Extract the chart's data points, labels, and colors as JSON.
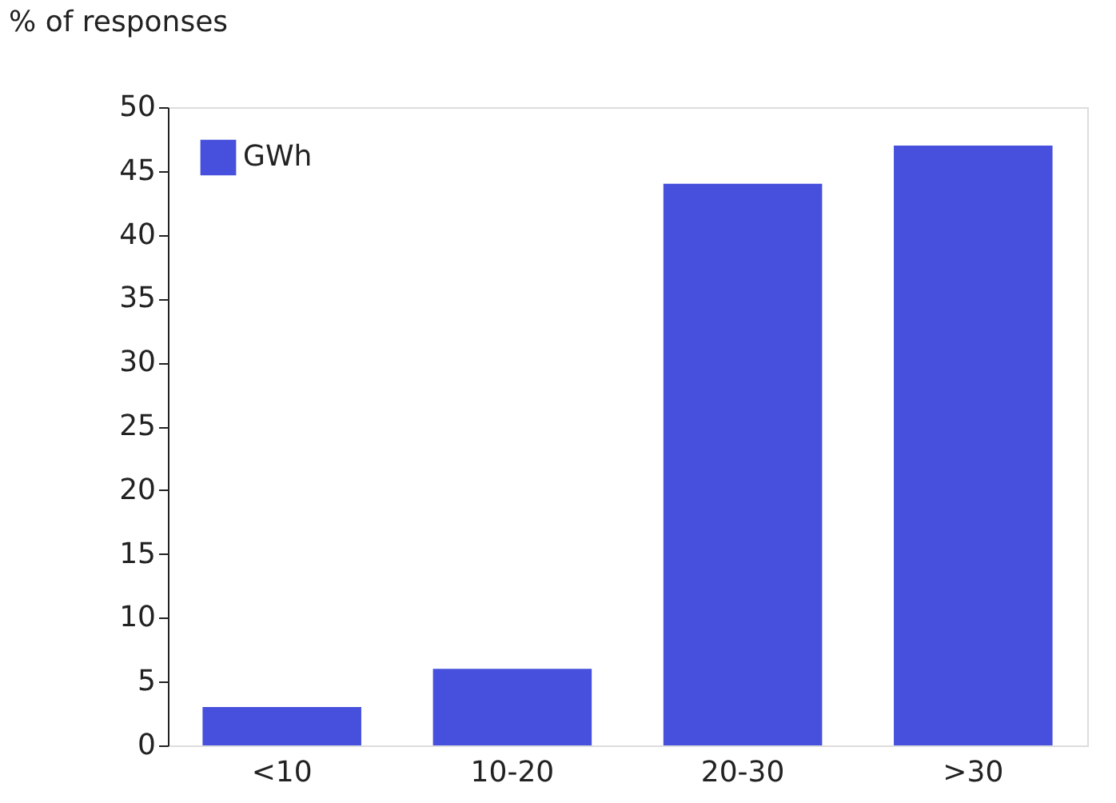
{
  "chart_data": {
    "type": "bar",
    "ylabel": "% of responses",
    "categories": [
      "<10",
      "10-20",
      "20-30",
      ">30"
    ],
    "series": [
      {
        "name": "GWh",
        "color": "#4650dc",
        "values": [
          3,
          6,
          44,
          47
        ]
      }
    ],
    "ylim": [
      0,
      50
    ],
    "yticks": [
      0,
      5,
      10,
      15,
      20,
      25,
      30,
      35,
      40,
      45,
      50
    ],
    "grid": false,
    "legend": "top left"
  }
}
